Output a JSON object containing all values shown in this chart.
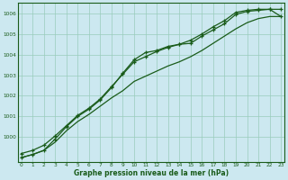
{
  "xlabel": "Graphe pression niveau de la mer (hPa)",
  "bg_color": "#cce8f0",
  "grid_color": "#99ccbb",
  "line_color": "#1a5c1a",
  "ylim": [
    998.8,
    1006.5
  ],
  "xlim": [
    -0.3,
    23.3
  ],
  "yticks": [
    1000,
    1001,
    1002,
    1003,
    1004,
    1005,
    1006
  ],
  "x_ticks": [
    0,
    1,
    2,
    3,
    4,
    5,
    6,
    7,
    8,
    9,
    10,
    11,
    12,
    13,
    14,
    15,
    16,
    17,
    18,
    19,
    20,
    21,
    22,
    23
  ],
  "line1_x": [
    0,
    1,
    2,
    3,
    4,
    5,
    6,
    7,
    8,
    9,
    10,
    11,
    12,
    13,
    14,
    15,
    16,
    17,
    18,
    19,
    20,
    21,
    22,
    23
  ],
  "line1_y": [
    999.0,
    999.15,
    999.35,
    999.9,
    1000.5,
    1001.0,
    1001.35,
    1001.8,
    1002.4,
    1003.1,
    1003.75,
    1004.1,
    1004.2,
    1004.4,
    1004.5,
    1004.55,
    1004.9,
    1005.2,
    1005.5,
    1005.95,
    1006.1,
    1006.15,
    1006.2,
    1006.2
  ],
  "line2_x": [
    0,
    1,
    2,
    3,
    4,
    5,
    6,
    7,
    8,
    9,
    10,
    11,
    12,
    13,
    14,
    15,
    16,
    17,
    18,
    19,
    20,
    21,
    22,
    23
  ],
  "line2_y": [
    999.2,
    999.35,
    999.6,
    1000.05,
    1000.55,
    1001.05,
    1001.4,
    1001.85,
    1002.45,
    1003.05,
    1003.65,
    1003.9,
    1004.15,
    1004.35,
    1004.5,
    1004.7,
    1005.0,
    1005.35,
    1005.65,
    1006.05,
    1006.15,
    1006.2,
    1006.2,
    1005.85
  ],
  "line3_x": [
    0,
    1,
    2,
    3,
    4,
    5,
    6,
    7,
    8,
    9,
    10,
    11,
    12,
    13,
    14,
    15,
    16,
    17,
    18,
    19,
    20,
    21,
    22,
    23
  ],
  "line3_y": [
    999.0,
    999.15,
    999.35,
    999.75,
    1000.3,
    1000.75,
    1001.1,
    1001.5,
    1001.9,
    1002.25,
    1002.7,
    1002.95,
    1003.2,
    1003.45,
    1003.65,
    1003.9,
    1004.2,
    1004.55,
    1004.9,
    1005.25,
    1005.55,
    1005.75,
    1005.85,
    1005.85
  ]
}
